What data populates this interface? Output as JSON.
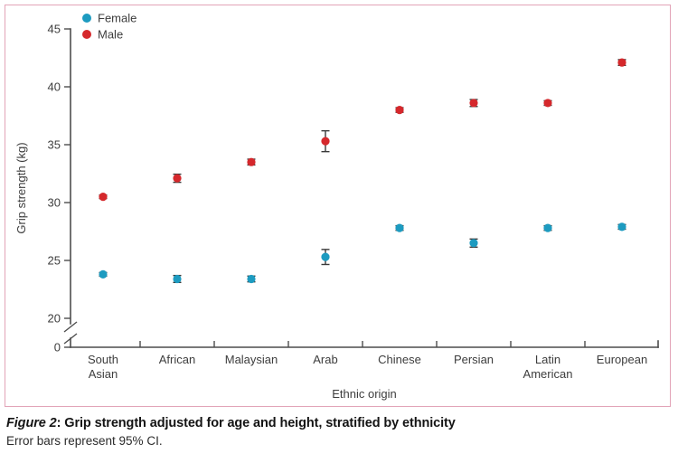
{
  "figure": {
    "caption_prefix": "Figure 2",
    "caption_rest": ": Grip strength adjusted for age and height, stratified by ethnicity",
    "caption_note": "Error bars represent 95% CI."
  },
  "chart_data": {
    "type": "scatter",
    "title": "",
    "xlabel": "Ethnic origin",
    "ylabel": "Grip strength (kg)",
    "categories": [
      "South Asian",
      "African",
      "Malaysian",
      "Arab",
      "Chinese",
      "Persian",
      "Latin American",
      "European"
    ],
    "category_label_lines": [
      [
        "South",
        "Asian"
      ],
      [
        "African"
      ],
      [
        "Malaysian"
      ],
      [
        "Arab"
      ],
      [
        "Chinese"
      ],
      [
        "Persian"
      ],
      [
        "Latin",
        "American"
      ],
      [
        "European"
      ]
    ],
    "series": [
      {
        "name": "Female",
        "color": "#1d9bc0",
        "values": [
          23.8,
          23.4,
          23.4,
          25.3,
          27.8,
          26.5,
          27.8,
          27.9
        ],
        "ci95_halfwidth": [
          0.15,
          0.3,
          0.25,
          0.65,
          0.2,
          0.35,
          0.2,
          0.2
        ]
      },
      {
        "name": "Male",
        "color": "#d5282c",
        "values": [
          30.5,
          32.1,
          33.5,
          35.3,
          38.0,
          38.6,
          38.6,
          42.1
        ],
        "ci95_halfwidth": [
          0.15,
          0.35,
          0.25,
          0.9,
          0.2,
          0.3,
          0.2,
          0.25
        ]
      }
    ],
    "y_ticks": [
      0,
      20,
      25,
      30,
      35,
      40,
      45
    ],
    "ylim_display": [
      20,
      45
    ],
    "axis_break_between": [
      0,
      20
    ],
    "legend_position": "top-left",
    "legend_entries": [
      "Female",
      "Male"
    ],
    "grid": false,
    "error_bars": "95% CI"
  },
  "style": {
    "female_color": "#1d9bc0",
    "male_color": "#d5282c",
    "axis_color": "#4d4d4d",
    "text_color": "#3d3d3d",
    "frame_color": "#e2a4b8",
    "error_bar_color": "#3a3a3a"
  }
}
